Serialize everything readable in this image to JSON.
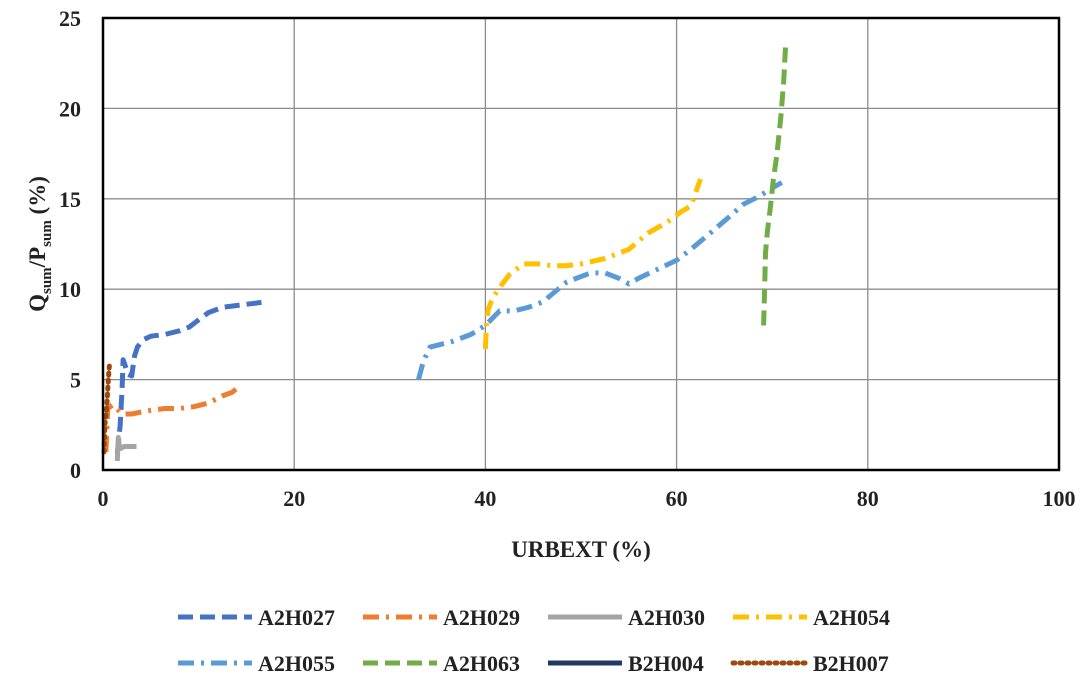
{
  "chart_data": {
    "type": "line",
    "xlabel": "URBEXT (%)",
    "ylabel": {
      "q": "Q",
      "q_sub": "sum",
      "slash": "/P",
      "p_sub": "sum",
      "unit": " (%)"
    },
    "xlim": [
      0,
      100
    ],
    "ylim": [
      0,
      25
    ],
    "x_ticks": [
      0,
      20,
      40,
      60,
      80,
      100
    ],
    "y_ticks": [
      0,
      5,
      10,
      15,
      20,
      25
    ],
    "grid": true,
    "legend_position": "bottom",
    "series": [
      {
        "name": "A2H027",
        "color": "#4472C4",
        "dash": "dash",
        "x": [
          1.5,
          1.8,
          2.0,
          2.1,
          2.3,
          2.6,
          3.0,
          3.3,
          3.6,
          4.2,
          5.0,
          6.5,
          8.0,
          9.0,
          10.0,
          11.0,
          12.5,
          14.0,
          15.5,
          17.0
        ],
        "y": [
          0.9,
          2.5,
          4.5,
          6.1,
          5.8,
          5.3,
          5.2,
          6.3,
          6.8,
          7.2,
          7.4,
          7.5,
          7.7,
          7.9,
          8.3,
          8.7,
          9.0,
          9.1,
          9.2,
          9.3
        ]
      },
      {
        "name": "A2H029",
        "color": "#ED7D31",
        "dash": "dashdot",
        "x": [
          0.3,
          0.5,
          1.0,
          1.6,
          2.0,
          3.0,
          4.0,
          5.0,
          6.5,
          8.0,
          9.5,
          11.0,
          12.5,
          13.5,
          14.2
        ],
        "y": [
          1.0,
          3.4,
          3.6,
          3.3,
          3.1,
          3.1,
          3.2,
          3.3,
          3.4,
          3.4,
          3.5,
          3.7,
          4.1,
          4.3,
          4.6
        ]
      },
      {
        "name": "A2H030",
        "color": "#A5A5A5",
        "dash": "solid",
        "x": [
          1.5,
          1.6,
          1.7,
          1.9,
          2.2,
          2.8,
          3.5
        ],
        "y": [
          0.5,
          1.8,
          1.3,
          1.2,
          1.3,
          1.3,
          1.3
        ]
      },
      {
        "name": "A2H054",
        "color": "#FFC000",
        "dash": "dashdot",
        "x": [
          40.0,
          40.1,
          40.3,
          40.6,
          41.0,
          41.5,
          42.5,
          44.0,
          45.5,
          47.0,
          48.5,
          50.0,
          52.5,
          55.0,
          57.0,
          59.0,
          60.5,
          61.5,
          62.5
        ],
        "y": [
          6.7,
          8.0,
          8.9,
          9.3,
          9.7,
          10.1,
          10.8,
          11.4,
          11.4,
          11.3,
          11.3,
          11.4,
          11.7,
          12.2,
          13.1,
          13.7,
          14.3,
          14.6,
          16.1
        ]
      },
      {
        "name": "A2H055",
        "color": "#5B9BD5",
        "dash": "dashdot",
        "x": [
          33.0,
          33.5,
          34.2,
          35.0,
          36.5,
          38.5,
          40.0,
          41.5,
          43.0,
          44.5,
          46.0,
          48.5,
          51.0,
          52.5,
          54.0,
          55.0,
          56.0,
          58.0,
          60.0,
          61.5,
          63.5,
          65.5,
          67.0,
          68.5,
          70.0,
          71.0
        ],
        "y": [
          5.0,
          6.0,
          6.8,
          6.9,
          7.1,
          7.5,
          8.0,
          8.8,
          8.8,
          9.0,
          9.3,
          10.4,
          10.9,
          10.9,
          10.6,
          10.3,
          10.6,
          11.1,
          11.6,
          12.2,
          13.1,
          14.0,
          14.7,
          15.1,
          15.6,
          15.9
        ]
      },
      {
        "name": "A2H063",
        "color": "#70AD47",
        "dash": "dash",
        "x": [
          69.1,
          69.2,
          69.3,
          69.5,
          69.8,
          70.1,
          70.5,
          70.9,
          71.2,
          71.4
        ],
        "y": [
          8.0,
          10.0,
          12.0,
          13.2,
          14.5,
          16.0,
          17.5,
          19.5,
          21.5,
          23.5
        ]
      },
      {
        "name": "B2H004",
        "color": "#203864",
        "dash": "solid",
        "x": [],
        "y": []
      },
      {
        "name": "B2H007",
        "color": "#9E480E",
        "dash": "dot",
        "x": [
          0.1,
          0.2,
          0.4,
          0.5,
          0.6,
          0.7
        ],
        "y": [
          1.0,
          2.5,
          3.5,
          4.5,
          5.3,
          6.0
        ]
      }
    ]
  }
}
